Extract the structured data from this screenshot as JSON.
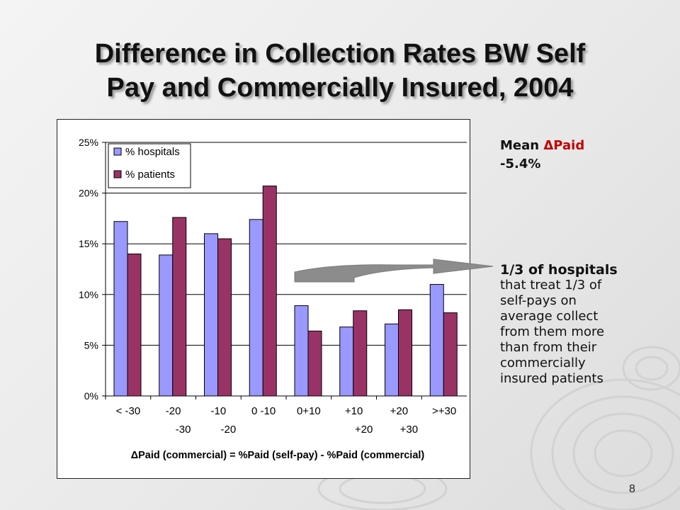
{
  "slide": {
    "title_line1": "Difference in Collection Rates BW Self",
    "title_line2": "Pay and Commercially Insured, 2004",
    "page_number": "8"
  },
  "side_text": {
    "mean_label": "Mean ",
    "mean_delta": "ΔPaid",
    "mean_value": "-5.4%",
    "note_bold": "1/3 of hospitals",
    "note_lines": [
      "that treat 1/3 of",
      "self-pays on",
      "average collect",
      "from them more",
      "than from their",
      "commercially",
      "insured patients"
    ]
  },
  "colors": {
    "hospitals": "#9999ff",
    "patients": "#993366",
    "arrow": "#8c8c8c",
    "delta_text": "#c00000"
  },
  "chart_data": {
    "type": "bar",
    "categories": [
      [
        "< -30",
        ""
      ],
      [
        "-20",
        "-30"
      ],
      [
        "-10",
        "-20"
      ],
      [
        "0 -10",
        ""
      ],
      [
        "0+10",
        ""
      ],
      [
        "+10",
        "+20"
      ],
      [
        "+20",
        "+30"
      ],
      [
        ">+30",
        ""
      ]
    ],
    "series": [
      {
        "name": "% hospitals",
        "values": [
          17.2,
          13.9,
          16.0,
          17.4,
          8.9,
          6.8,
          7.1,
          11.0
        ]
      },
      {
        "name": "% patients",
        "values": [
          14.0,
          17.6,
          15.5,
          20.7,
          6.4,
          8.4,
          8.5,
          8.2
        ]
      }
    ],
    "xlabel": "ΔPaid (commercial) = %Paid (self-pay) - %Paid (commercial)",
    "ylabel": "",
    "ylim": [
      0,
      25
    ],
    "yticks": [
      "0%",
      "5%",
      "10%",
      "15%",
      "20%",
      "25%"
    ],
    "ytick_values": [
      0,
      5,
      10,
      15,
      20,
      25
    ],
    "grid": true,
    "legend": "top-left"
  }
}
